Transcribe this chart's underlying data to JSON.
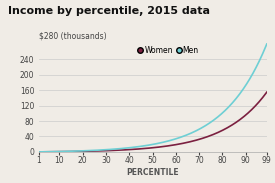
{
  "title": "Income by percentile, 2015 data",
  "ylabel": "$280 (thousands)",
  "xlabel": "PERCENTILE",
  "yticks": [
    0,
    40,
    80,
    120,
    160,
    200,
    240
  ],
  "xticks": [
    1,
    10,
    20,
    30,
    40,
    50,
    60,
    70,
    80,
    90,
    99
  ],
  "xlim": [
    1,
    99
  ],
  "ylim": [
    0,
    285
  ],
  "women_color": "#7b2040",
  "men_color": "#6ecfd4",
  "bg_color": "#f0ece6",
  "title_fontsize": 8,
  "axis_label_fontsize": 5.5,
  "tick_fontsize": 5.5,
  "legend_labels": [
    "Women",
    "Men"
  ],
  "exp_scale": 5.2,
  "women_max": 155,
  "men_max": 280
}
